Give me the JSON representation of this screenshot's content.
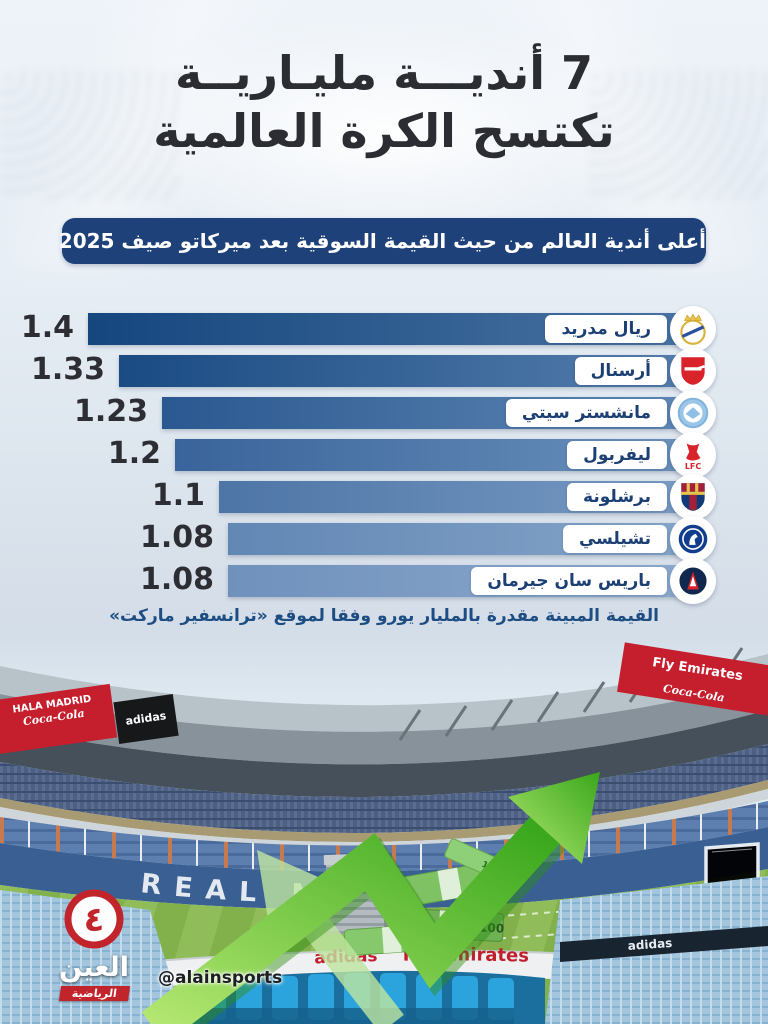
{
  "page": {
    "lang": "ar",
    "kind": "sports-infographic"
  },
  "header": {
    "title_line1": "7 أنديـــة مليـاريــة",
    "title_line2": "تكتسح الكرة العالمية",
    "banner_label": "أعلى أندية العالم من حيث القيمة السوقية بعد ميركاتو صيف 2025"
  },
  "chart_data": {
    "type": "bar",
    "orientation": "horizontal-rtl",
    "title": "أعلى أندية العالم من حيث القيمة السوقية بعد ميركاتو صيف 2025",
    "unit": "مليار يورو",
    "value_range": [
      0,
      1.4
    ],
    "max_value": 1.4,
    "rows": [
      {
        "club": "ريال مدريد",
        "logo": "real-madrid-crest",
        "value": 1.4,
        "value_label": "1.4"
      },
      {
        "club": "أرسنال",
        "logo": "arsenal-crest",
        "value": 1.33,
        "value_label": "1.33"
      },
      {
        "club": "مانشستر سيتي",
        "logo": "manchester-city-crest",
        "value": 1.23,
        "value_label": "1.23"
      },
      {
        "club": "ليفربول",
        "logo": "liverpool-crest",
        "value": 1.2,
        "value_label": "1.2",
        "crest_text": "LFC"
      },
      {
        "club": "برشلونة",
        "logo": "barcelona-crest",
        "value": 1.1,
        "value_label": "1.1"
      },
      {
        "club": "تشيلسي",
        "logo": "chelsea-crest",
        "value": 1.08,
        "value_label": "1.08"
      },
      {
        "club": "باريس سان جيرمان",
        "logo": "psg-crest",
        "value": 1.08,
        "value_label": "1.08"
      }
    ],
    "bar_colors": [
      {
        "from": "#15467e",
        "to": "#4a74a3"
      },
      {
        "from": "#1a4b83",
        "to": "#567fae"
      },
      {
        "from": "#2a5890",
        "to": "#6189b6"
      },
      {
        "from": "#39649b",
        "to": "#6c92bc"
      },
      {
        "from": "#4d75a6",
        "to": "#7a9cc4"
      },
      {
        "from": "#6287b4",
        "to": "#86a6ca"
      },
      {
        "from": "#6f91bc",
        "to": "#8eabce"
      }
    ],
    "footnote": "القيمة المبينة مقدرة بالمليار يورو وفقا لموقع «ترانسفير ماركت»"
  },
  "stadium": {
    "seats_text": "REAL MADRID",
    "ads": {
      "hala_madrid": "HALA MADRID",
      "coca_cola": "Coca-Cola",
      "adidas": "adidas",
      "fly_emirates": "Fly Emirates"
    },
    "money_bill_value": "100"
  },
  "branding": {
    "logo_mark": "٤",
    "logo_name": "العين",
    "logo_tagline": "الرياضية",
    "handle": "@alainsports"
  },
  "colors": {
    "banner_bg": "#1d4178",
    "value_text": "#2c2e33",
    "footnote_text": "#1d4d82",
    "brand_red": "#c2242c",
    "arrow_green": "#3aa81c"
  }
}
